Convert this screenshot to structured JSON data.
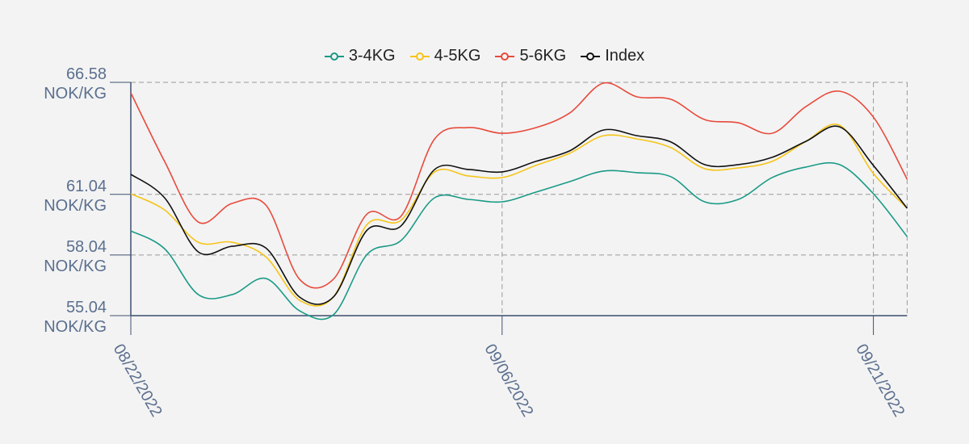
{
  "chart_data": {
    "type": "line",
    "categories": [
      "08/22/2022",
      null,
      null,
      null,
      null,
      null,
      null,
      null,
      null,
      null,
      null,
      "09/06/2022",
      null,
      null,
      null,
      null,
      null,
      null,
      null,
      null,
      null,
      null,
      "09/21/2022",
      null
    ],
    "series": [
      {
        "name": "3-4KG",
        "color": "#1a9a86",
        "values": [
          59.23,
          58.35,
          56.08,
          56.08,
          56.88,
          55.28,
          55.08,
          58.07,
          58.75,
          60.87,
          60.79,
          60.67,
          61.15,
          61.67,
          62.19,
          62.11,
          61.91,
          60.67,
          60.79,
          61.87,
          62.39,
          62.51,
          61.07,
          58.95
        ]
      },
      {
        "name": "4-5KG",
        "color": "#f5c518",
        "values": [
          61.07,
          60.27,
          58.67,
          58.67,
          57.95,
          55.8,
          55.96,
          59.55,
          59.75,
          62.15,
          61.95,
          61.87,
          62.47,
          63.07,
          63.94,
          63.78,
          63.35,
          62.31,
          62.35,
          62.67,
          63.66,
          64.46,
          62.07,
          60.35
        ]
      },
      {
        "name": "5-6KG",
        "color": "#e84a3c",
        "values": [
          66.06,
          62.67,
          59.67,
          60.59,
          60.51,
          56.84,
          56.84,
          60.07,
          59.95,
          63.78,
          64.34,
          64.06,
          64.34,
          65.06,
          66.54,
          65.86,
          65.74,
          64.74,
          64.58,
          64.06,
          65.38,
          66.14,
          64.86,
          61.79
        ]
      },
      {
        "name": "Index",
        "color": "#111111",
        "values": [
          62.03,
          60.87,
          58.19,
          58.47,
          58.39,
          55.96,
          55.96,
          59.27,
          59.47,
          62.27,
          62.27,
          62.15,
          62.67,
          63.19,
          64.22,
          63.94,
          63.63,
          62.51,
          62.51,
          62.87,
          63.66,
          64.38,
          62.47,
          60.35
        ]
      }
    ],
    "ylim": [
      55.04,
      66.58
    ],
    "yticks": [
      {
        "value": 55.04,
        "label": "55.04 NOK/KG"
      },
      {
        "value": 58.04,
        "label": "58.04 NOK/KG"
      },
      {
        "value": 61.04,
        "label": "61.04 NOK/KG"
      },
      {
        "value": 66.58,
        "label": "66.58 NOK/KG"
      }
    ],
    "grid": true
  }
}
